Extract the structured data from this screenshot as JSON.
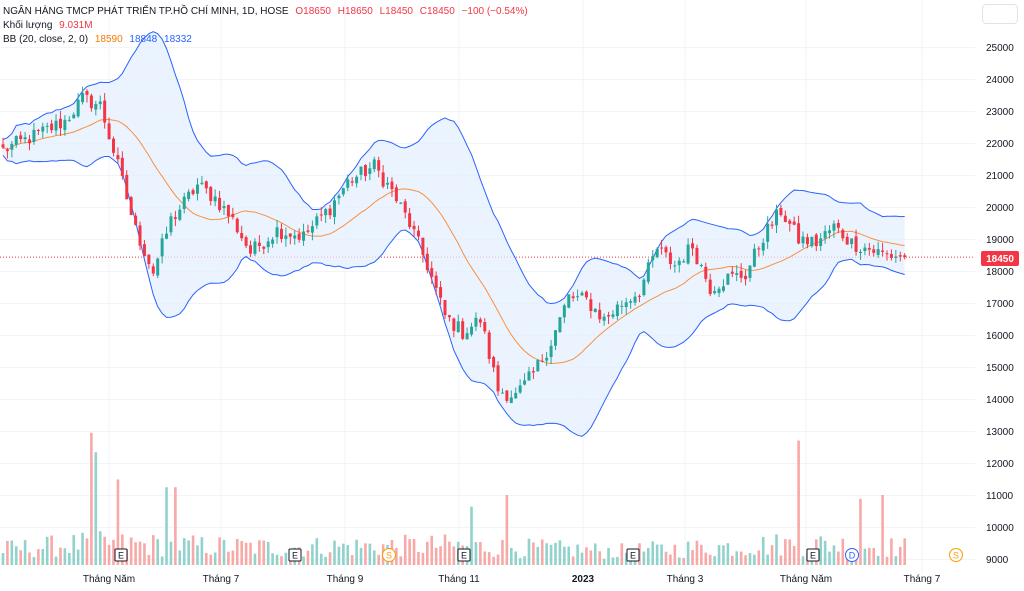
{
  "header": {
    "symbol_line": "NGÂN HÀNG TMCP PHÁT TRIỂN TP.HỒ CHÍ MINH, 1D, HOSE",
    "open": "O18650",
    "high": "H18650",
    "low": "L18450",
    "close": "C18450",
    "change": "−100 (−0.54%)",
    "volume_label": "Khối lượng",
    "volume_value": "9.031M",
    "bb_label": "BB (20, close, 2, 0)",
    "bb_basis": "18590",
    "bb_upper": "18848",
    "bb_lower": "18332"
  },
  "price_tag": "18450",
  "colors": {
    "up": "#26a69a",
    "down": "#f23645",
    "bb_basis": "#ff6d00",
    "bb_band": "#2962ff",
    "bb_fill": "#e3f0fd"
  },
  "events": [
    {
      "label": "E",
      "style": "earnings"
    },
    {
      "label": "E",
      "style": "earnings"
    },
    {
      "label": "S",
      "style": "split"
    },
    {
      "label": "E",
      "style": "earnings"
    },
    {
      "label": "E",
      "style": "earnings"
    },
    {
      "label": "E",
      "style": "earnings"
    },
    {
      "label": "D",
      "style": "dividend"
    },
    {
      "label": "S",
      "style": "split"
    }
  ],
  "chart_data": {
    "type": "candlestick",
    "title": "",
    "y_ticks": [
      "25000",
      "24000",
      "23000",
      "22000",
      "21000",
      "20000",
      "19000",
      "18000",
      "17000",
      "16000",
      "15000",
      "14000",
      "13000",
      "12000",
      "11000",
      "10000",
      "9000"
    ],
    "x_ticks": [
      "Tháng Năm",
      "Tháng 7",
      "Tháng 9",
      "Tháng 11",
      "2023",
      "Tháng 3",
      "Tháng Năm",
      "Tháng 7"
    ],
    "price_range": [
      8700,
      25300
    ],
    "last_price": 18450,
    "price_anchors": [
      [
        0,
        21800
      ],
      [
        8,
        22300
      ],
      [
        14,
        22700
      ],
      [
        18,
        23400
      ],
      [
        22,
        23200
      ],
      [
        26,
        21300
      ],
      [
        30,
        19300
      ],
      [
        34,
        18000
      ],
      [
        38,
        19600
      ],
      [
        44,
        20700
      ],
      [
        48,
        20300
      ],
      [
        52,
        19600
      ],
      [
        56,
        18600
      ],
      [
        62,
        19300
      ],
      [
        68,
        19100
      ],
      [
        74,
        20000
      ],
      [
        78,
        20800
      ],
      [
        84,
        21300
      ],
      [
        88,
        20500
      ],
      [
        92,
        19500
      ],
      [
        96,
        18200
      ],
      [
        100,
        16600
      ],
      [
        104,
        16100
      ],
      [
        108,
        16500
      ],
      [
        112,
        14300
      ],
      [
        116,
        14100
      ],
      [
        120,
        14800
      ],
      [
        124,
        15800
      ],
      [
        128,
        17200
      ],
      [
        132,
        17100
      ],
      [
        136,
        16500
      ],
      [
        140,
        17000
      ],
      [
        144,
        17400
      ],
      [
        148,
        18700
      ],
      [
        152,
        18200
      ],
      [
        156,
        18800
      ],
      [
        160,
        17500
      ],
      [
        164,
        17800
      ],
      [
        168,
        17900
      ],
      [
        172,
        19100
      ],
      [
        176,
        19900
      ],
      [
        180,
        19000
      ],
      [
        184,
        18900
      ],
      [
        188,
        19400
      ],
      [
        192,
        18900
      ],
      [
        196,
        18700
      ],
      [
        200,
        18500
      ],
      [
        204,
        18500
      ]
    ],
    "volume_anchors": [
      [
        0,
        400000
      ],
      [
        20,
        550000
      ],
      [
        60,
        450000
      ],
      [
        100,
        500000
      ],
      [
        140,
        350000
      ],
      [
        180,
        550000
      ],
      [
        204,
        450000
      ]
    ],
    "volume_spikes": [
      [
        20,
        3400000
      ],
      [
        21,
        2900000
      ],
      [
        26,
        2200000
      ],
      [
        37,
        2000000
      ],
      [
        39,
        2000000
      ],
      [
        106,
        1500000
      ],
      [
        114,
        1800000
      ],
      [
        180,
        3200000
      ],
      [
        194,
        1700000
      ],
      [
        199,
        1800000
      ]
    ]
  }
}
